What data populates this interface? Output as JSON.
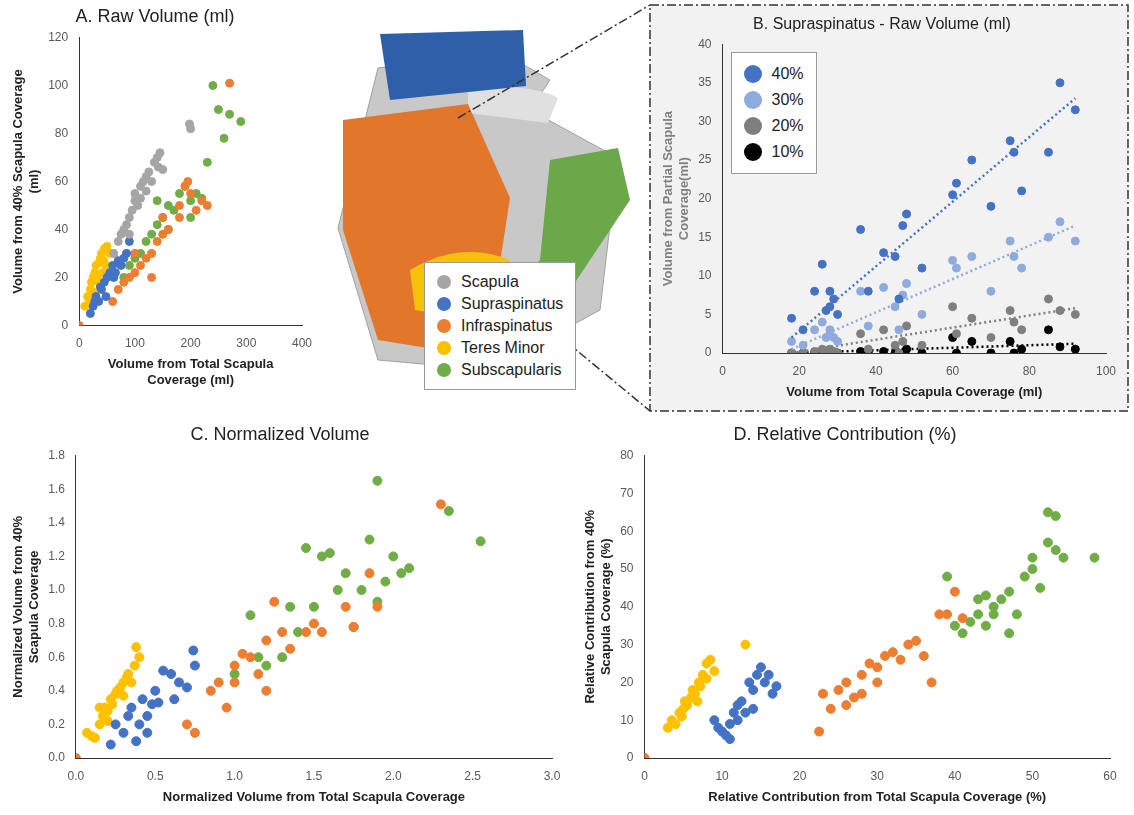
{
  "chart_data": [
    {
      "type": "scatter",
      "title": "A. Raw Volume (ml)",
      "x_label": "Volume from Total Scapula Coverage (ml)",
      "y_label": "Volume from 40% Scapula Coverage (ml)",
      "xlim": [
        0,
        400
      ],
      "xticks": [
        0,
        100,
        200,
        300,
        400
      ],
      "ylim": [
        0,
        120
      ],
      "yticks": [
        0,
        20,
        40,
        60,
        80,
        100,
        120
      ],
      "grid": false,
      "legend": "right",
      "marker": "circle",
      "series": [
        {
          "name": "Scapula",
          "color": "#a5a5a5",
          "x": [
            62,
            70,
            75,
            80,
            85,
            90,
            95,
            100,
            100,
            105,
            110,
            115,
            120,
            125,
            130,
            135,
            140,
            142,
            145,
            150,
            198,
            200,
            90,
            110,
            120
          ],
          "values": [
            30,
            35,
            38,
            40,
            42,
            45,
            48,
            52,
            55,
            50,
            58,
            60,
            62,
            64,
            60,
            68,
            70,
            66,
            72,
            65,
            84,
            82,
            38,
            53,
            56
          ]
        },
        {
          "name": "Supraspinatus",
          "color": "#4472c4",
          "x": [
            20,
            25,
            28,
            30,
            35,
            40,
            45,
            50,
            55,
            60,
            65,
            70,
            75,
            80,
            85,
            90,
            38,
            48,
            62,
            72
          ],
          "values": [
            5,
            8,
            10,
            12,
            10,
            15,
            18,
            20,
            22,
            25,
            22,
            27,
            25,
            28,
            30,
            35,
            16,
            12,
            20,
            26
          ]
        },
        {
          "name": "Infraspinatus",
          "color": "#ed7d31",
          "x": [
            0,
            60,
            70,
            80,
            90,
            100,
            110,
            120,
            130,
            140,
            150,
            160,
            180,
            190,
            195,
            200,
            210,
            220,
            230,
            270,
            100,
            130,
            150,
            180
          ],
          "values": [
            0,
            10,
            15,
            18,
            20,
            22,
            25,
            28,
            30,
            35,
            38,
            40,
            50,
            58,
            60,
            55,
            48,
            52,
            50,
            101,
            30,
            20,
            45,
            45
          ]
        },
        {
          "name": "Teres Minor",
          "color": "#ffc000",
          "x": [
            10,
            15,
            20,
            22,
            25,
            28,
            30,
            32,
            35,
            38,
            40,
            42,
            45,
            48,
            50,
            55,
            18,
            26,
            36,
            44
          ],
          "values": [
            8,
            12,
            15,
            18,
            20,
            22,
            25,
            20,
            26,
            28,
            30,
            22,
            32,
            25,
            33,
            30,
            10,
            14,
            18,
            27
          ]
        },
        {
          "name": "Subscapularis",
          "color": "#70ad47",
          "x": [
            80,
            90,
            100,
            110,
            120,
            130,
            140,
            150,
            160,
            170,
            180,
            190,
            200,
            210,
            220,
            230,
            240,
            250,
            260,
            270,
            290,
            140,
            160,
            200
          ],
          "values": [
            20,
            25,
            28,
            30,
            35,
            38,
            42,
            45,
            50,
            48,
            55,
            58,
            52,
            55,
            53,
            68,
            100,
            90,
            78,
            88,
            85,
            52,
            40,
            45
          ]
        }
      ]
    },
    {
      "type": "scatter",
      "title": "B. Supraspinatus - Raw Volume (ml)",
      "x_label": "Volume from Total Scapula Coverage (ml)",
      "y_label": "Volume from Partial Scapula Coverage(ml)",
      "xlim": [
        0,
        100
      ],
      "xticks": [
        0,
        20,
        40,
        60,
        80,
        100
      ],
      "ylim": [
        0,
        40
      ],
      "yticks": [
        0,
        5,
        10,
        15,
        20,
        25,
        30,
        35,
        40
      ],
      "grid": false,
      "legend": "top-left",
      "marker": "circle",
      "series": [
        {
          "name": "40%",
          "color": "#4472c4",
          "line_style": "dotted",
          "x": [
            18,
            21,
            24,
            26,
            27,
            28,
            28,
            29,
            30,
            36,
            38,
            42,
            45,
            46,
            47,
            48,
            52,
            60,
            61,
            65,
            70,
            75,
            76,
            78,
            85,
            88,
            92
          ],
          "values": [
            4.5,
            3,
            8,
            11.5,
            5.5,
            6,
            8,
            7,
            5,
            16,
            8,
            13,
            12.5,
            7,
            16.5,
            18,
            11,
            20.5,
            22,
            25,
            19,
            27.5,
            26,
            21,
            26,
            35,
            31.5
          ],
          "trend": {
            "x": [
              18,
              92
            ],
            "values": [
              2,
              33
            ]
          }
        },
        {
          "name": "30%",
          "color": "#8faadc",
          "line_style": "dotted",
          "x": [
            18,
            21,
            24,
            26,
            27,
            28,
            28,
            29,
            30,
            36,
            38,
            42,
            45,
            46,
            47,
            48,
            52,
            60,
            61,
            65,
            70,
            75,
            76,
            78,
            85,
            88,
            92
          ],
          "values": [
            1.5,
            1,
            3,
            4,
            2,
            2.5,
            3,
            2,
            1.5,
            8,
            3.5,
            8.5,
            6,
            3,
            7.5,
            9,
            5,
            12,
            11,
            12.5,
            8,
            14.5,
            12.5,
            11,
            15,
            17,
            14.5
          ],
          "trend": {
            "x": [
              18,
              92
            ],
            "values": [
              0.5,
              16.5
            ]
          }
        },
        {
          "name": "20%",
          "color": "#7f7f7f",
          "line_style": "dotted",
          "x": [
            18,
            21,
            24,
            26,
            27,
            28,
            28,
            29,
            30,
            36,
            38,
            42,
            45,
            46,
            47,
            48,
            52,
            60,
            61,
            65,
            70,
            75,
            76,
            78,
            85,
            88,
            92
          ],
          "values": [
            0,
            0,
            0.2,
            0.5,
            0,
            0.3,
            0.5,
            0.2,
            0,
            2.5,
            0.5,
            3,
            1,
            0,
            1.5,
            3.5,
            1,
            6,
            2.5,
            4.5,
            2,
            5.5,
            4,
            3,
            7,
            5.5,
            5
          ],
          "trend": {
            "x": [
              18,
              92
            ],
            "values": [
              0,
              5.8
            ]
          }
        },
        {
          "name": "10%",
          "color": "#000000",
          "line_style": "dotted",
          "x": [
            18,
            21,
            24,
            26,
            27,
            28,
            28,
            29,
            30,
            36,
            38,
            42,
            45,
            46,
            47,
            48,
            52,
            60,
            61,
            65,
            70,
            75,
            76,
            78,
            85,
            88,
            92
          ],
          "values": [
            0,
            0,
            0,
            0,
            0,
            0,
            0,
            0,
            0,
            0.2,
            0,
            0.2,
            0,
            0,
            0,
            0.5,
            0,
            2,
            0,
            1.5,
            0,
            1.5,
            0,
            0.5,
            3,
            0.8,
            0.5
          ],
          "trend": {
            "x": [
              18,
              92
            ],
            "values": [
              0,
              1.2
            ]
          }
        }
      ]
    },
    {
      "type": "scatter",
      "title": "C. Normalized Volume",
      "x_label": "Normalized Volume from Total Scapula Coverage",
      "y_label": "Normalized Volume from 40% Scapula Coverage",
      "xlim": [
        0,
        3
      ],
      "xticks": [
        {
          "value": 0,
          "label": "0.0"
        },
        0.5,
        {
          "value": 1,
          "label": "1.0"
        },
        1.5,
        {
          "value": 2,
          "label": "2.0"
        },
        2.5,
        {
          "value": 3,
          "label": "3.0"
        }
      ],
      "ylim": [
        0,
        1.8
      ],
      "yticks": [
        {
          "value": 0,
          "label": "0.0"
        },
        0.2,
        0.4,
        0.6,
        0.8,
        {
          "value": 1,
          "label": "1.0"
        },
        1.2,
        1.4,
        1.6,
        1.8
      ],
      "grid": false,
      "marker": "circle",
      "series": [
        {
          "name": "Supraspinatus",
          "color": "#4472c4",
          "x": [
            0.22,
            0.25,
            0.3,
            0.33,
            0.35,
            0.38,
            0.4,
            0.42,
            0.45,
            0.48,
            0.5,
            0.55,
            0.6,
            0.62,
            0.65,
            0.7,
            0.74,
            0.75,
            0.45,
            0.52
          ],
          "values": [
            0.08,
            0.2,
            0.15,
            0.25,
            0.3,
            0.1,
            0.2,
            0.35,
            0.15,
            0.32,
            0.4,
            0.52,
            0.5,
            0.35,
            0.45,
            0.42,
            0.64,
            0.55,
            0.25,
            0.33
          ]
        },
        {
          "name": "Infraspinatus",
          "color": "#ed7d31",
          "x": [
            0,
            0.7,
            0.75,
            0.85,
            0.9,
            0.95,
            1.0,
            1.05,
            1.1,
            1.15,
            1.2,
            1.25,
            1.3,
            1.35,
            1.45,
            1.5,
            1.55,
            1.7,
            1.75,
            1.85,
            1.9,
            2.3,
            1.0,
            1.2
          ],
          "values": [
            0,
            0.2,
            0.15,
            0.4,
            0.45,
            0.3,
            0.55,
            0.62,
            0.6,
            0.5,
            0.7,
            0.93,
            0.75,
            0.65,
            0.75,
            0.8,
            0.75,
            0.9,
            0.78,
            1.1,
            0.9,
            1.51,
            0.45,
            0.4
          ]
        },
        {
          "name": "Teres Minor",
          "color": "#ffc000",
          "x": [
            0.07,
            0.1,
            0.15,
            0.17,
            0.18,
            0.2,
            0.22,
            0.23,
            0.25,
            0.26,
            0.28,
            0.3,
            0.32,
            0.33,
            0.35,
            0.37,
            0.38,
            0.4,
            0.2,
            0.3,
            0.15,
            0.12
          ],
          "values": [
            0.15,
            0.13,
            0.2,
            0.25,
            0.3,
            0.28,
            0.35,
            0.32,
            0.38,
            0.4,
            0.42,
            0.45,
            0.48,
            0.5,
            0.45,
            0.55,
            0.66,
            0.6,
            0.22,
            0.37,
            0.3,
            0.12
          ]
        },
        {
          "name": "Subscapularis",
          "color": "#70ad47",
          "x": [
            1.0,
            1.1,
            1.15,
            1.2,
            1.3,
            1.35,
            1.4,
            1.45,
            1.5,
            1.55,
            1.6,
            1.65,
            1.7,
            1.75,
            1.8,
            1.85,
            1.9,
            1.95,
            2.0,
            2.05,
            2.1,
            2.35,
            2.55,
            1.9
          ],
          "values": [
            0.5,
            0.85,
            0.6,
            0.55,
            0.6,
            0.9,
            0.75,
            1.25,
            0.9,
            1.2,
            1.22,
            1.0,
            1.1,
            0.78,
            1.0,
            1.3,
            1.65,
            1.05,
            1.2,
            1.1,
            1.13,
            1.47,
            1.29,
            0.93
          ]
        }
      ]
    },
    {
      "type": "scatter",
      "title": "D. Relative Contribution (%)",
      "x_label": "Relative Contribution from Total Scapula Coverage (%)",
      "y_label": "Relative Contribution from 40% Scapula Coverage (%)",
      "xlim": [
        0,
        60
      ],
      "xticks": [
        0,
        10,
        20,
        30,
        40,
        50,
        60
      ],
      "ylim": [
        0,
        80
      ],
      "yticks": [
        0,
        10,
        20,
        30,
        40,
        50,
        60,
        70,
        80
      ],
      "grid": false,
      "marker": "circle",
      "series": [
        {
          "name": "Supraspinatus",
          "color": "#4472c4",
          "x": [
            9,
            9.5,
            10,
            10.5,
            11,
            11.5,
            12,
            12,
            12.5,
            13,
            13.5,
            14,
            14.5,
            15,
            15.5,
            16,
            16.5,
            17,
            11,
            14
          ],
          "values": [
            10,
            8,
            7,
            6,
            9,
            12,
            14,
            10,
            15,
            12,
            20,
            18,
            22,
            24,
            20,
            22,
            17,
            19,
            5,
            13
          ]
        },
        {
          "name": "Infraspinatus",
          "color": "#ed7d31",
          "x": [
            0,
            22.5,
            23,
            24,
            25,
            26,
            27,
            28,
            28,
            29,
            30,
            31,
            32,
            33,
            34,
            35,
            36,
            37,
            38,
            39,
            40,
            41,
            30,
            26
          ],
          "values": [
            0,
            7,
            17,
            13,
            18,
            14,
            16,
            17,
            22,
            25,
            20,
            27,
            28,
            26,
            30,
            31,
            27,
            20,
            38,
            38,
            44,
            37,
            24,
            20
          ]
        },
        {
          "name": "Teres Minor",
          "color": "#ffc000",
          "x": [
            3,
            3.5,
            4,
            4.5,
            5,
            5.2,
            5.5,
            6,
            6.2,
            6.5,
            7,
            7.2,
            7.5,
            8,
            8,
            8.5,
            9,
            4.8,
            6.8,
            13
          ],
          "values": [
            8,
            10,
            9,
            12,
            13,
            15,
            14,
            16,
            18,
            17,
            20,
            19,
            22,
            21,
            25,
            26,
            23,
            11,
            15,
            30
          ]
        },
        {
          "name": "Subscapularis",
          "color": "#70ad47",
          "x": [
            39,
            40,
            41,
            42,
            43,
            43,
            44,
            44,
            45,
            45,
            46,
            47,
            48,
            49,
            50,
            50,
            51,
            52,
            52,
            53,
            53,
            54,
            58,
            47
          ],
          "values": [
            48,
            35,
            33,
            36,
            38,
            42,
            35,
            43,
            38,
            40,
            42,
            44,
            38,
            48,
            50,
            53,
            45,
            57,
            65,
            55,
            64,
            53,
            53,
            33
          ]
        }
      ]
    }
  ]
}
